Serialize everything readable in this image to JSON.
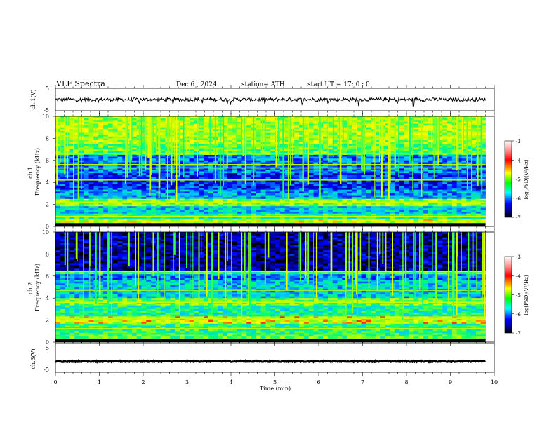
{
  "header": {
    "title": "VLF  Spectra",
    "date": "Dec.6  , 2024",
    "station": "station= ATH",
    "start": "start  UT  =    17: 0   : 0"
  },
  "chart_data": [
    {
      "type": "line",
      "id": "ch1-waveform",
      "ylabel": "ch.1(V)",
      "ylim": [
        -5,
        5
      ],
      "y_ticks": [
        "5",
        "-5"
      ],
      "xlim": [
        0,
        10
      ],
      "x_units": "min",
      "approx_level": 0,
      "data_end_min": 9.8,
      "color": "#000000"
    },
    {
      "type": "heatmap",
      "id": "ch1-spectrogram",
      "ylabel": "ch.1\nFrequency  (kHz)",
      "ylim": [
        0,
        10
      ],
      "y_ticks": [
        "0",
        "2",
        "4",
        "6",
        "8",
        "10"
      ],
      "xlim": [
        0,
        10
      ],
      "data_end_min": 9.8,
      "bands_khz": [
        {
          "from": 0.0,
          "to": 0.6,
          "log_psd": -4.6
        },
        {
          "from": 0.6,
          "to": 1.2,
          "log_psd": -5.2
        },
        {
          "from": 1.2,
          "to": 1.8,
          "log_psd": -5.6
        },
        {
          "from": 1.8,
          "to": 2.5,
          "log_psd": -4.8
        },
        {
          "from": 2.5,
          "to": 3.3,
          "log_psd": -5.8
        },
        {
          "from": 3.3,
          "to": 4.8,
          "log_psd": -6.2
        },
        {
          "from": 4.8,
          "to": 6.5,
          "log_psd": -5.9
        },
        {
          "from": 6.5,
          "to": 7.5,
          "log_psd": -5.0
        },
        {
          "from": 7.5,
          "to": 10.0,
          "log_psd": -4.7
        }
      ],
      "colorbar": {
        "label": "log(PSD)(V²/Hz)",
        "range": [
          -7,
          -3
        ],
        "ticks": [
          "-3",
          "-4",
          "-5",
          "-6",
          "-7"
        ],
        "colors": [
          "#ffffff",
          "#ff0000",
          "#ffff00",
          "#00ff00",
          "#00ffff",
          "#0000ff",
          "#000000"
        ]
      }
    },
    {
      "type": "heatmap",
      "id": "ch2-spectrogram",
      "ylabel": "ch.2\nFrequency  (kHz)",
      "ylim": [
        0,
        10
      ],
      "y_ticks": [
        "0",
        "2",
        "4",
        "6",
        "8",
        "10"
      ],
      "xlim": [
        0,
        10
      ],
      "data_end_min": 9.8,
      "bands_khz": [
        {
          "from": 0.0,
          "to": 0.6,
          "log_psd": -5.0
        },
        {
          "from": 0.6,
          "to": 1.7,
          "log_psd": -5.2
        },
        {
          "from": 1.7,
          "to": 2.3,
          "log_psd": -4.5
        },
        {
          "from": 2.3,
          "to": 3.3,
          "log_psd": -5.3
        },
        {
          "from": 3.3,
          "to": 4.0,
          "log_psd": -4.9
        },
        {
          "from": 4.0,
          "to": 5.6,
          "log_psd": -5.6
        },
        {
          "from": 5.6,
          "to": 6.2,
          "log_psd": -5.9
        },
        {
          "from": 6.2,
          "to": 6.5,
          "log_psd": -5.1
        },
        {
          "from": 6.5,
          "to": 10.0,
          "log_psd": -6.6
        }
      ],
      "colorbar": {
        "label": "log(PSD)(V²/Hz)",
        "range": [
          -7,
          -3
        ],
        "ticks": [
          "-3",
          "-4",
          "-5",
          "-6",
          "-7"
        ],
        "colors": [
          "#ffffff",
          "#ff0000",
          "#ffff00",
          "#00ff00",
          "#00ffff",
          "#0000ff",
          "#000000"
        ]
      }
    },
    {
      "type": "line",
      "id": "ch3-waveform",
      "ylabel": "ch.3(V)",
      "ylim": [
        -5,
        5
      ],
      "y_ticks": [
        "5",
        "-5"
      ],
      "xlim": [
        0,
        10
      ],
      "approx_level": -1.2,
      "data_end_min": 9.8,
      "color": "#000000",
      "xlabel": "Time  (min)",
      "x_ticks": [
        "0",
        "1",
        "2",
        "3",
        "4",
        "5",
        "6",
        "7",
        "8",
        "9",
        "10"
      ]
    }
  ]
}
